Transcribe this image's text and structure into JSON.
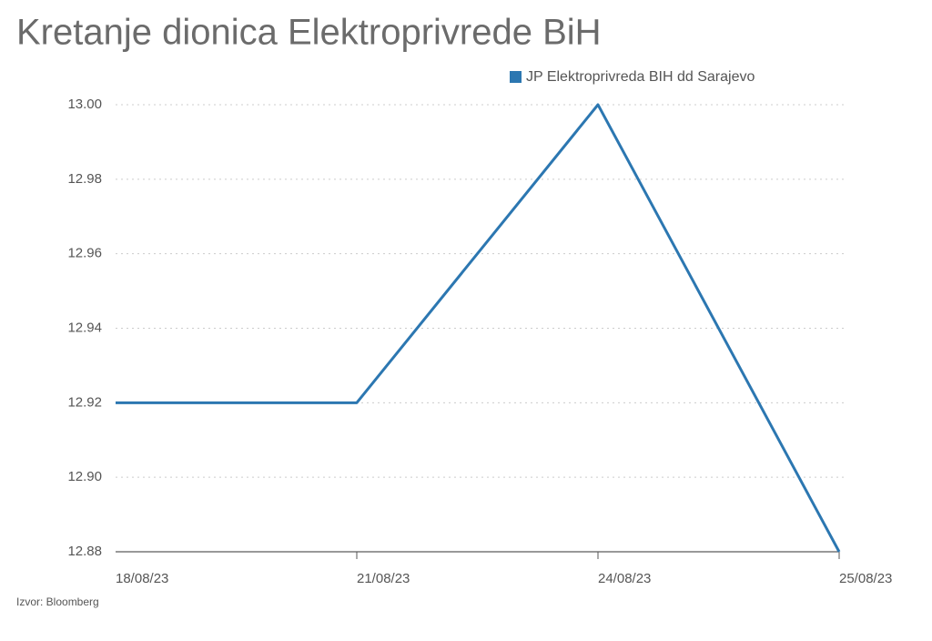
{
  "chart_data": {
    "type": "line",
    "title": "Kretanje dionica Elektroprivrede BiH",
    "source": "Izvor: Bloomberg",
    "categories": [
      "18/08/23",
      "21/08/23",
      "24/08/23",
      "25/08/23"
    ],
    "series": [
      {
        "name": "JP Elektroprivreda BIH dd Sarajevo",
        "color": "#2c77b1",
        "values": [
          12.92,
          12.92,
          13.0,
          12.88
        ]
      }
    ],
    "ylim": [
      12.88,
      13.0
    ],
    "yticks": [
      {
        "value": 13.0,
        "label": "13.00"
      },
      12.98,
      12.96,
      12.94,
      12.92,
      {
        "value": 12.9,
        "label": "12.90"
      },
      12.88
    ],
    "grid": true
  }
}
